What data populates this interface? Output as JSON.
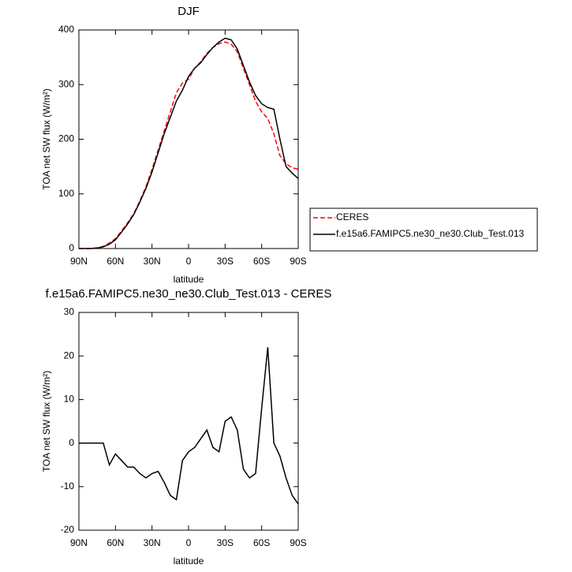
{
  "chart_data": [
    {
      "type": "line",
      "title": "DJF",
      "xlabel": "latitude",
      "ylabel": "TOA net SW flux (W/m²)",
      "x": [
        90,
        85,
        80,
        75,
        70,
        65,
        60,
        55,
        50,
        45,
        40,
        35,
        30,
        25,
        20,
        15,
        10,
        5,
        0,
        -5,
        -10,
        -15,
        -20,
        -25,
        -30,
        -35,
        -40,
        -45,
        -50,
        -55,
        -60,
        -65,
        -70,
        -75,
        -80,
        -85,
        -90
      ],
      "series": [
        {
          "name": "CERES",
          "color": "#ff0000",
          "line_style": "dashed",
          "values": [
            0,
            0,
            0,
            1,
            4,
            10,
            18,
            32,
            47,
            64,
            87,
            113,
            145,
            180,
            215,
            250,
            285,
            303,
            310,
            330,
            342,
            357,
            368,
            375,
            378,
            374,
            360,
            330,
            300,
            270,
            250,
            238,
            210,
            170,
            155,
            148,
            145
          ]
        },
        {
          "name": "f.e15a6.FAMIPC5.ne30_ne30.Club_Test.013",
          "color": "#000000",
          "line_style": "solid",
          "values": [
            0,
            0,
            0,
            1,
            3,
            8,
            16,
            30,
            45,
            62,
            85,
            110,
            140,
            175,
            210,
            240,
            270,
            290,
            315,
            330,
            340,
            355,
            368,
            378,
            385,
            382,
            365,
            335,
            305,
            280,
            265,
            258,
            255,
            200,
            150,
            138,
            128
          ]
        }
      ],
      "xlim": [
        90,
        -90
      ],
      "xticks": [
        {
          "value": 90,
          "label": "90N"
        },
        {
          "value": 60,
          "label": "60N"
        },
        {
          "value": 30,
          "label": "30N"
        },
        0,
        {
          "value": -30,
          "label": "30S"
        },
        {
          "value": -60,
          "label": "60S"
        },
        {
          "value": -90,
          "label": "90S"
        }
      ],
      "ylim": [
        0,
        400
      ],
      "yticks": [
        0,
        100,
        200,
        300,
        400
      ],
      "legend": "right"
    },
    {
      "type": "line",
      "title": "f.e15a6.FAMIPC5.ne30_ne30.Club_Test.013 - CERES",
      "xlabel": "latitude",
      "ylabel": "TOA net SW flux (W/m²)",
      "x": [
        90,
        85,
        80,
        75,
        70,
        65,
        60,
        55,
        50,
        45,
        40,
        35,
        30,
        25,
        20,
        15,
        10,
        5,
        0,
        -5,
        -10,
        -15,
        -20,
        -25,
        -30,
        -35,
        -40,
        -45,
        -50,
        -55,
        -60,
        -65,
        -70,
        -75,
        -80,
        -85,
        -90
      ],
      "series": [
        {
          "color": "#000000",
          "line_style": "solid",
          "values": [
            0,
            0,
            0,
            0,
            0,
            -5,
            -2.5,
            -4,
            -5.5,
            -5.5,
            -7,
            -8,
            -7,
            -6.5,
            -9,
            -12,
            -13,
            -4,
            -2,
            -1,
            1,
            3,
            -1,
            -2,
            5,
            6,
            3,
            -6,
            -8,
            -7,
            8,
            22,
            0,
            -3,
            -8,
            -12,
            -14
          ]
        }
      ],
      "xlim": [
        90,
        -90
      ],
      "xticks": [
        {
          "value": 90,
          "label": "90N"
        },
        {
          "value": 60,
          "label": "60N"
        },
        {
          "value": 30,
          "label": "30N"
        },
        0,
        {
          "value": -30,
          "label": "30S"
        },
        {
          "value": -60,
          "label": "60S"
        },
        {
          "value": -90,
          "label": "90S"
        }
      ],
      "ylim": [
        -20,
        30
      ],
      "yticks": [
        -20,
        -10,
        0,
        10,
        20,
        30
      ]
    }
  ]
}
